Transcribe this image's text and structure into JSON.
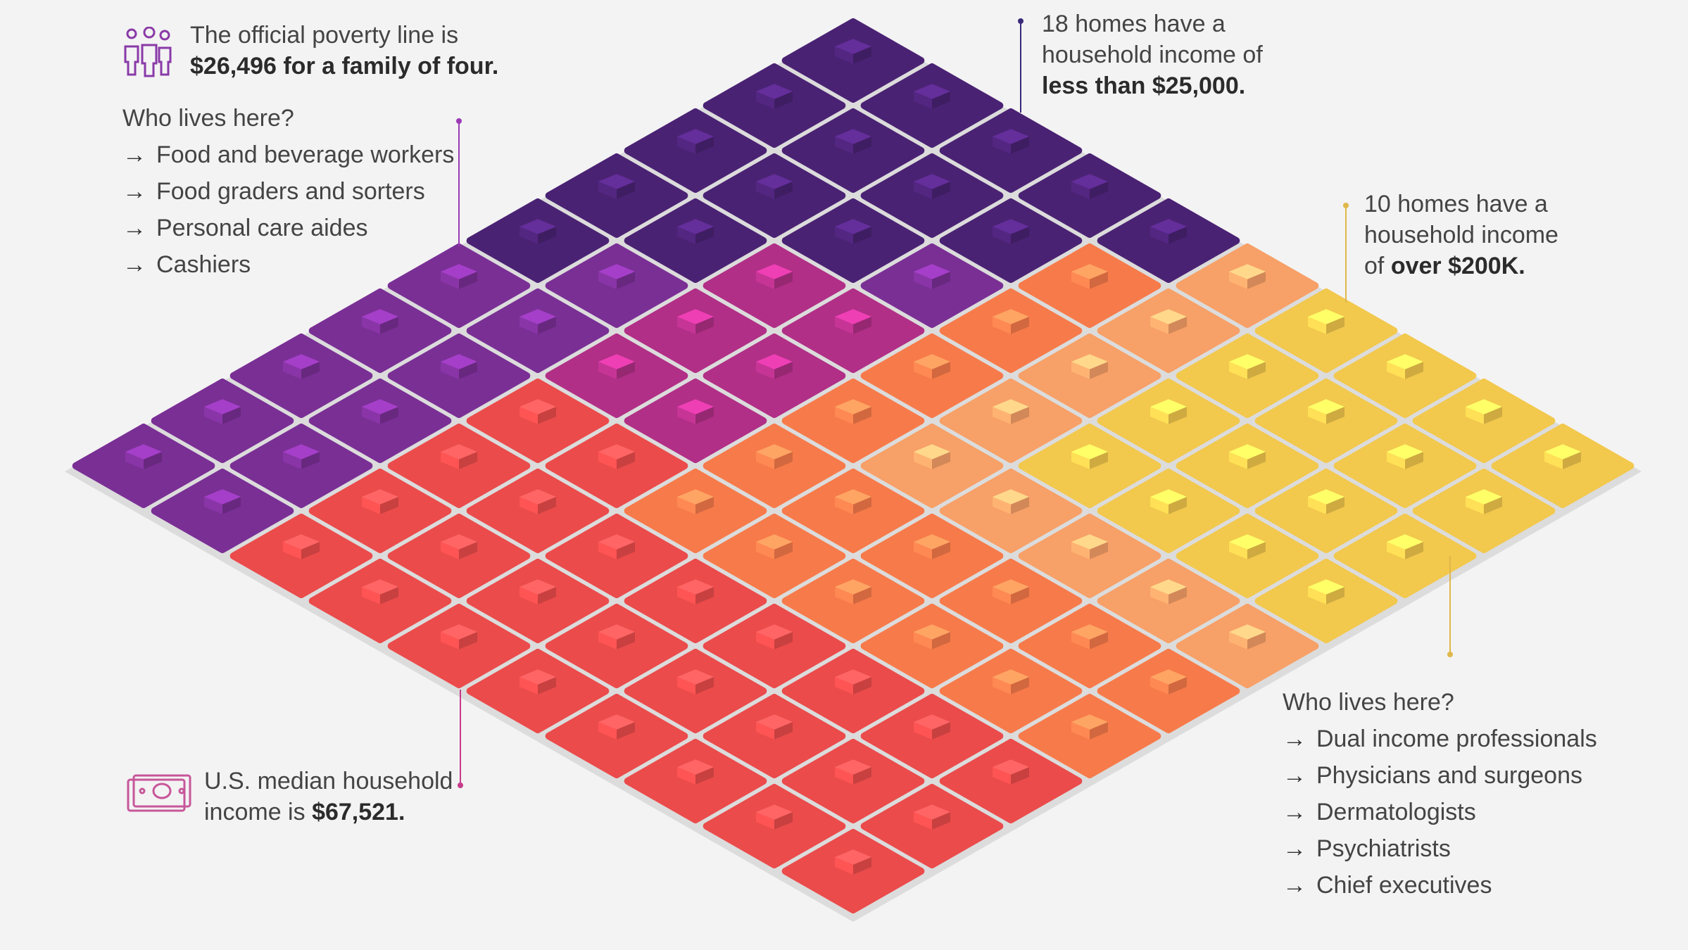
{
  "colors": {
    "background": "#f3f3f3",
    "tier_lt25k": "#4a2273",
    "tier_low": "#7a2f95",
    "tier_lowmid": "#b12f86",
    "tier_mid": "#eb4b4b",
    "tier_uppermid": "#f77a4a",
    "tier_high": "#f7a067",
    "tier_top": "#f2c84d",
    "accent_purple": "#9a3ab5",
    "accent_pink": "#c73a8a",
    "accent_navy": "#3b2a7a",
    "accent_gold": "#e0b84a"
  },
  "poverty": {
    "icon": "family-icon",
    "line1": "The official poverty line is",
    "line2": "$26,496 for a family of four."
  },
  "low_income": {
    "heading": "Who lives here?",
    "items": [
      "Food and beverage workers",
      "Food graders and sorters",
      "Personal care aides",
      "Cashiers"
    ]
  },
  "bottom_tier": {
    "line1": "18 homes have a",
    "line2": "household income of",
    "line3": "less than $25,000."
  },
  "top_tier": {
    "line1": "10 homes have a",
    "line2": "household income",
    "line3_prefix": "of ",
    "line3_bold": "over $200K."
  },
  "high_income": {
    "heading": "Who lives here?",
    "items": [
      "Dual income professionals",
      "Physicians and surgeons",
      "Dermatologists",
      "Psychiatrists",
      "Chief executives"
    ]
  },
  "median": {
    "icon": "cash-icon",
    "line1": "U.S. median household",
    "line2_prefix": "income is ",
    "line2_bold": "$67,521."
  },
  "arrow_glyph": "→"
}
